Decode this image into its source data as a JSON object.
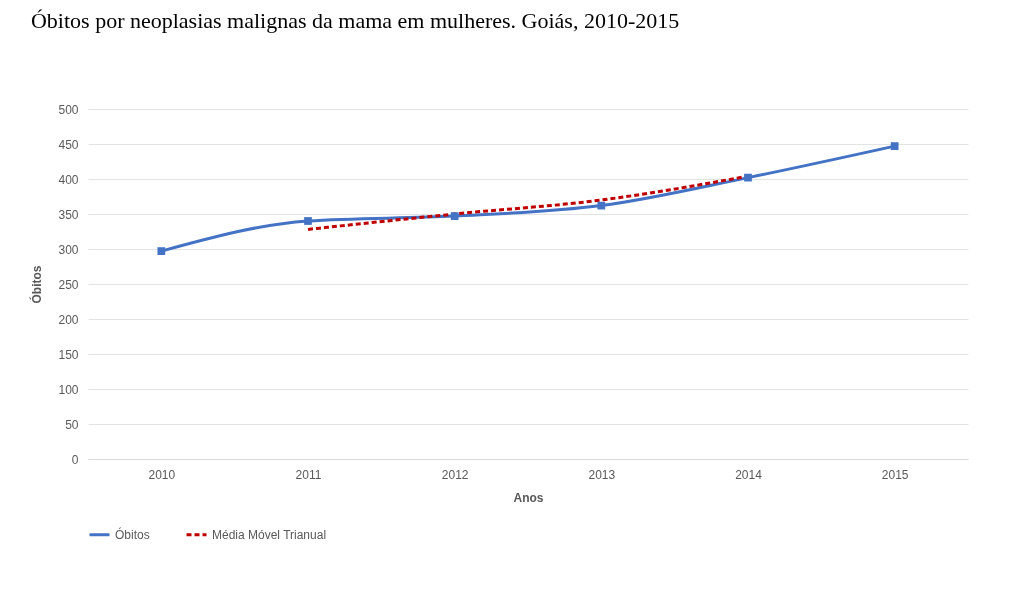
{
  "chart_data": {
    "type": "line",
    "title": "Óbitos por neoplasias malignas da mama em mulheres. Goiás, 2010-2015",
    "xlabel": "Anos",
    "ylabel": "Óbitos",
    "categories": [
      "2010",
      "2011",
      "2012",
      "2013",
      "2014",
      "2015"
    ],
    "series": [
      {
        "name": "Óbitos",
        "color": "#4472c4",
        "values": [
          297,
          340,
          347,
          362,
          402,
          447
        ],
        "marker": "square",
        "line_style": "solid"
      },
      {
        "name": "Média Móvel Trianual",
        "color": "#c00000",
        "values": [
          null,
          328,
          350,
          370,
          404,
          null
        ],
        "marker": "none",
        "line_style": "dashed"
      }
    ],
    "ylim": [
      0,
      500
    ],
    "yticks": [
      0,
      50,
      100,
      150,
      200,
      250,
      300,
      350,
      400,
      450,
      500
    ],
    "grid": "y",
    "legend": "bottom"
  }
}
